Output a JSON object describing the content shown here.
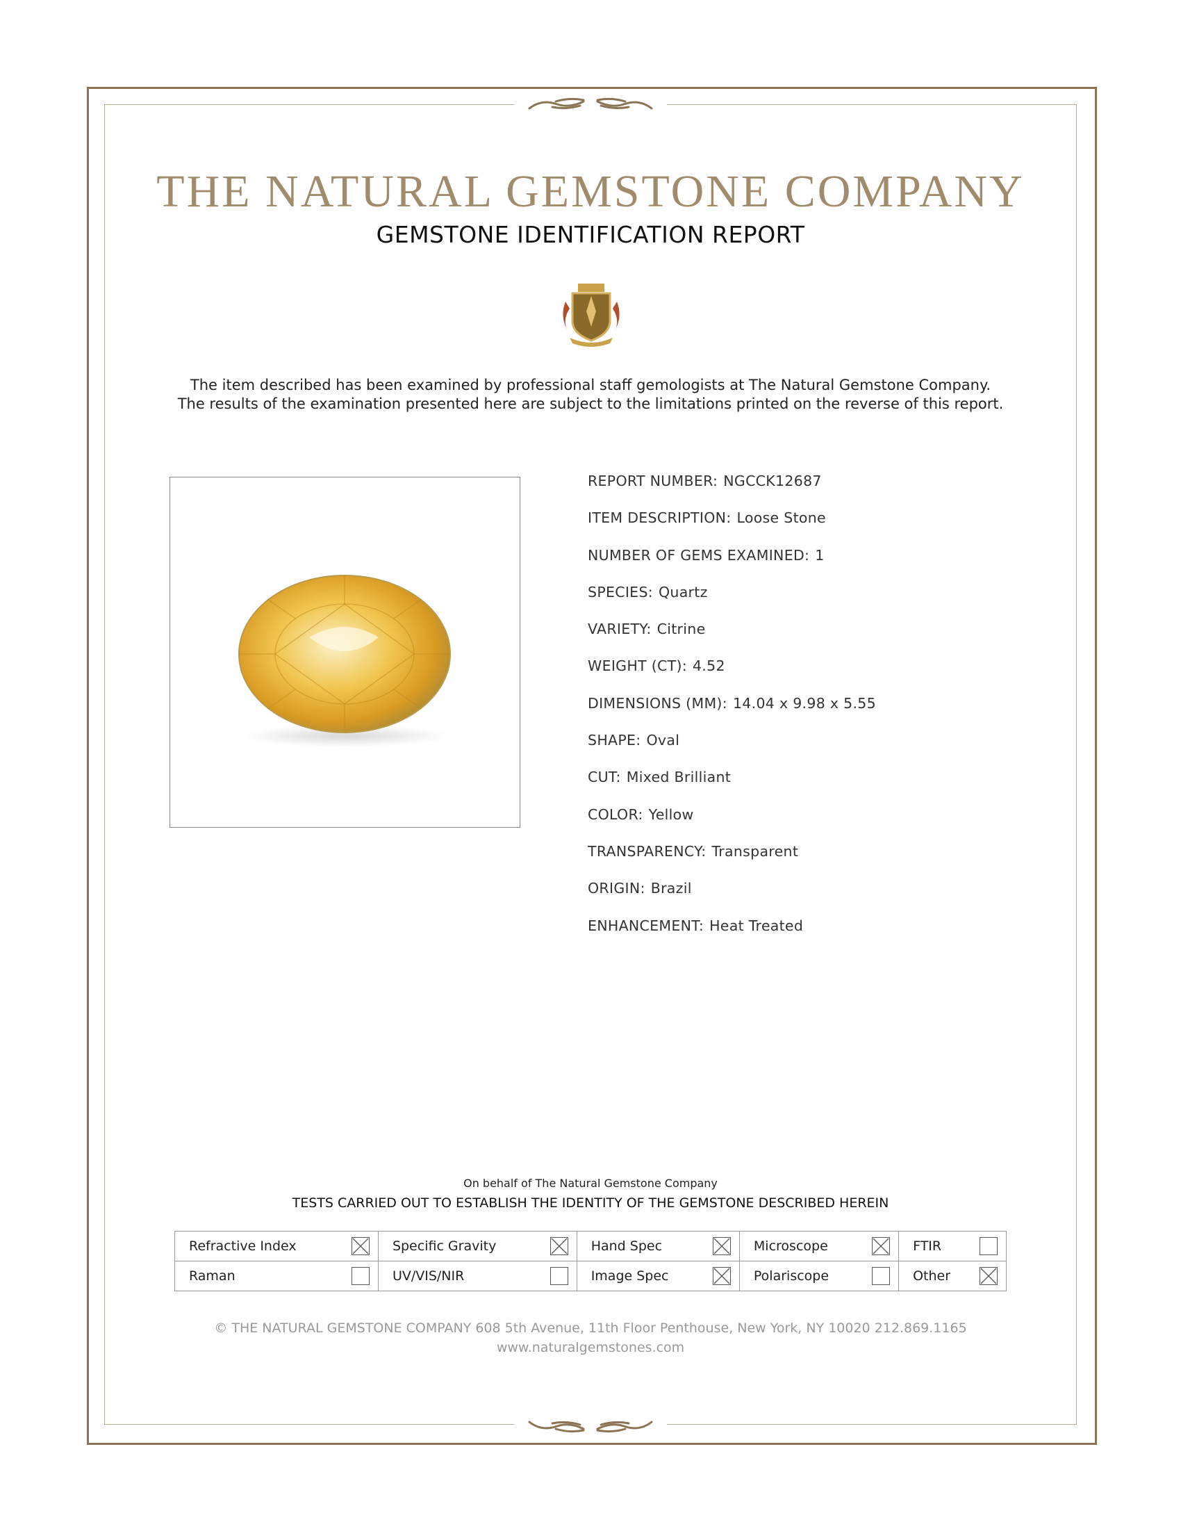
{
  "header": {
    "company": "THE NATURAL GEMSTONE COMPANY",
    "report_title": "GEMSTONE IDENTIFICATION REPORT"
  },
  "intro": {
    "line1": "The item described has been examined by professional staff gemologists at The Natural Gemstone Company.",
    "line2": "The results of the examination presented here are subject to the limitations printed on the reverse of this report."
  },
  "colors": {
    "frame": "#8a7453",
    "gold": "#a08c6c",
    "gem": "#e8b93a"
  },
  "fields": [
    {
      "label": "REPORT NUMBER:",
      "value": "NGCCK12687"
    },
    {
      "label": "ITEM DESCRIPTION:",
      "value": "Loose Stone"
    },
    {
      "label": "NUMBER OF GEMS EXAMINED:",
      "value": "1"
    },
    {
      "label": "SPECIES:",
      "value": "Quartz"
    },
    {
      "label": "VARIETY:",
      "value": "Citrine"
    },
    {
      "label": "WEIGHT (CT):",
      "value": "4.52"
    },
    {
      "label": "DIMENSIONS (MM):",
      "value": "14.04 x 9.98 x 5.55"
    },
    {
      "label": "SHAPE:",
      "value": "Oval"
    },
    {
      "label": "CUT:",
      "value": "Mixed Brilliant"
    },
    {
      "label": "COLOR:",
      "value": "Yellow"
    },
    {
      "label": "TRANSPARENCY:",
      "value": "Transparent"
    },
    {
      "label": "ORIGIN:",
      "value": "Brazil"
    },
    {
      "label": "ENHANCEMENT:",
      "value": "Heat Treated"
    }
  ],
  "tests": {
    "on_behalf": "On behalf of The Natural Gemstone Company",
    "heading": "TESTS CARRIED OUT TO ESTABLISH THE IDENTITY OF THE GEMSTONE DESCRIBED HEREIN",
    "items": [
      {
        "label": "Refractive Index",
        "checked": true
      },
      {
        "label": "Specific Gravity",
        "checked": true
      },
      {
        "label": "Hand Spec",
        "checked": true
      },
      {
        "label": "Microscope",
        "checked": true
      },
      {
        "label": "FTIR",
        "checked": false
      },
      {
        "label": "Raman",
        "checked": false
      },
      {
        "label": "UV/VIS/NIR",
        "checked": false
      },
      {
        "label": "Image Spec",
        "checked": true
      },
      {
        "label": "Polariscope",
        "checked": false
      },
      {
        "label": "Other",
        "checked": true
      }
    ]
  },
  "footer": {
    "address": "© THE NATURAL GEMSTONE COMPANY  608 5th Avenue, 11th Floor Penthouse, New York, NY  10020   212.869.1165",
    "website": "www.naturalgemstones.com"
  }
}
